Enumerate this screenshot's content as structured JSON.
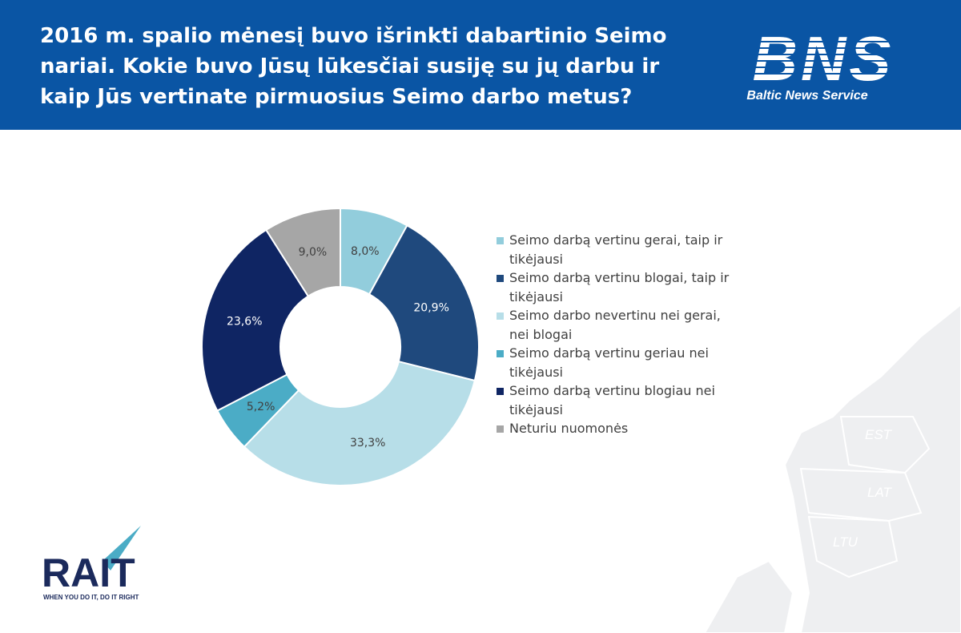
{
  "chart_data": {
    "type": "donut",
    "title": "2016 m. spalio mėnesį buvo išrinkti dabartinio Seimo nariai. Kokie buvo Jūsų lūkesčiai susiję su jų darbu ir kaip Jūs vertinate pirmuosius Seimo darbo metus?",
    "categories": [
      "Seimo darbą vertinu gerai, taip ir tikėjausi",
      "Seimo darbą vertinu blogai, taip ir tikėjausi",
      "Seimo darbo nevertinu nei gerai, nei blogai",
      "Seimo darbą vertinu geriau nei tikėjausi",
      "Seimo darbą vertinu blogiau nei tikėjausi",
      "Neturiu nuomonės"
    ],
    "values": [
      8.0,
      20.9,
      33.3,
      5.2,
      23.6,
      9.0
    ],
    "value_labels": [
      "8,0%",
      "20,9%",
      "33,3%",
      "5,2%",
      "23,6%",
      "9,0%"
    ],
    "colors": [
      "#92cddc",
      "#1f497d",
      "#b7dee8",
      "#4bacc6",
      "#0f2563",
      "#a6a6a6"
    ],
    "legend": "right"
  },
  "header": {
    "logo": "BNS",
    "logo_caption": "Baltic News Service"
  },
  "footer": {
    "logo": "RAIT",
    "slogan": "WHEN YOU DO IT, DO IT RIGHT"
  },
  "map_labels": [
    "EST",
    "LAT",
    "LTU"
  ]
}
